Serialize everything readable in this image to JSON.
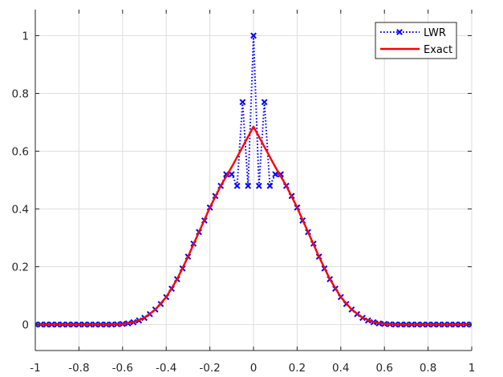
{
  "chart_data": {
    "type": "line",
    "title": "",
    "xlabel": "",
    "ylabel": "",
    "xlim": [
      -1,
      1
    ],
    "ylim": [
      -0.09,
      1.09
    ],
    "xticks": [
      -1,
      -0.8,
      -0.6,
      -0.4,
      -0.2,
      0,
      0.2,
      0.4,
      0.6,
      0.8,
      1
    ],
    "xtick_labels": [
      "-1",
      "-0.8",
      "-0.6",
      "-0.4",
      "-0.2",
      "0",
      "0.2",
      "0.4",
      "0.6",
      "0.8",
      "1"
    ],
    "yticks": [
      0,
      0.2,
      0.4,
      0.6,
      0.8,
      1
    ],
    "ytick_labels": [
      "0",
      "0.2",
      "0.4",
      "0.6",
      "0.8",
      "1"
    ],
    "grid": true,
    "legend_position": "top-right",
    "series": [
      {
        "name": "LWR",
        "color": "#0000ff",
        "line_style": "dotted",
        "marker": "x",
        "x": [
          -1,
          -0.975,
          -0.95,
          -0.925,
          -0.9,
          -0.875,
          -0.85,
          -0.825,
          -0.8,
          -0.775,
          -0.75,
          -0.725,
          -0.7,
          -0.675,
          -0.65,
          -0.625,
          -0.6,
          -0.575,
          -0.55,
          -0.525,
          -0.5,
          -0.475,
          -0.45,
          -0.425,
          -0.4,
          -0.375,
          -0.35,
          -0.325,
          -0.3,
          -0.275,
          -0.25,
          -0.225,
          -0.2,
          -0.175,
          -0.15,
          -0.125,
          -0.1,
          -0.075,
          -0.05,
          -0.025,
          0,
          0.025,
          0.05,
          0.075,
          0.1,
          0.125,
          0.15,
          0.175,
          0.2,
          0.225,
          0.25,
          0.275,
          0.3,
          0.325,
          0.35,
          0.375,
          0.4,
          0.425,
          0.45,
          0.475,
          0.5,
          0.525,
          0.55,
          0.575,
          0.6,
          0.625,
          0.65,
          0.675,
          0.7,
          0.725,
          0.75,
          0.775,
          0.8,
          0.825,
          0.85,
          0.875,
          0.9,
          0.925,
          0.95,
          0.975,
          1
        ],
        "y": [
          0,
          0,
          0,
          0,
          0,
          0,
          0,
          0,
          0,
          0,
          0,
          0,
          0,
          0,
          0,
          0.001,
          0.002,
          0.004,
          0.008,
          0.014,
          0.023,
          0.036,
          0.052,
          0.071,
          0.095,
          0.124,
          0.157,
          0.194,
          0.235,
          0.28,
          0.32,
          0.36,
          0.405,
          0.445,
          0.48,
          0.52,
          0.52,
          0.48,
          0.77,
          0.48,
          1.0,
          0.48,
          0.77,
          0.48,
          0.52,
          0.52,
          0.48,
          0.445,
          0.405,
          0.36,
          0.32,
          0.28,
          0.235,
          0.194,
          0.157,
          0.124,
          0.095,
          0.071,
          0.052,
          0.036,
          0.023,
          0.014,
          0.008,
          0.004,
          0.002,
          0.001,
          0,
          0,
          0,
          0,
          0,
          0,
          0,
          0,
          0,
          0,
          0,
          0,
          0,
          0,
          0
        ]
      },
      {
        "name": "Exact",
        "color": "#ff0000",
        "line_style": "solid",
        "marker": "none",
        "x": [
          -1,
          -0.95,
          -0.9,
          -0.85,
          -0.8,
          -0.75,
          -0.7,
          -0.65,
          -0.6,
          -0.55,
          -0.5,
          -0.45,
          -0.4,
          -0.35,
          -0.3,
          -0.25,
          -0.2,
          -0.15,
          -0.1,
          -0.05,
          0,
          0.05,
          0.1,
          0.15,
          0.2,
          0.25,
          0.3,
          0.35,
          0.4,
          0.45,
          0.5,
          0.55,
          0.6,
          0.65,
          0.7,
          0.75,
          0.8,
          0.85,
          0.9,
          0.95,
          1
        ],
        "y": [
          0,
          0,
          0,
          0,
          0,
          0,
          0,
          0,
          0.002,
          0.008,
          0.023,
          0.052,
          0.095,
          0.157,
          0.235,
          0.32,
          0.405,
          0.48,
          0.545,
          0.615,
          0.685,
          0.615,
          0.545,
          0.48,
          0.405,
          0.32,
          0.235,
          0.157,
          0.095,
          0.052,
          0.023,
          0.008,
          0.002,
          0,
          0,
          0,
          0,
          0,
          0,
          0,
          0
        ]
      }
    ]
  }
}
